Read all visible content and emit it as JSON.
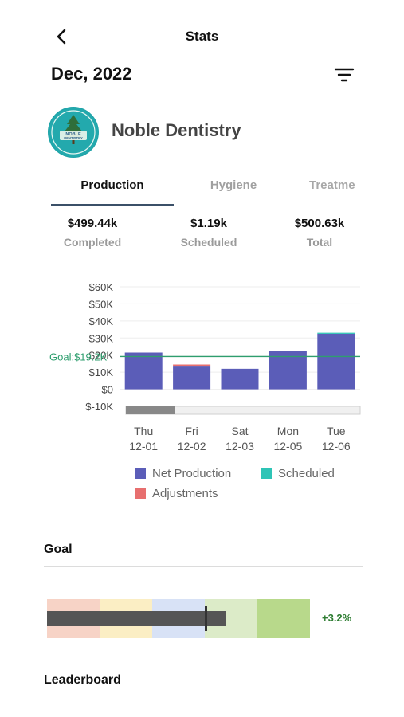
{
  "header": {
    "title": "Stats",
    "back_icon": "chevron-left-icon",
    "filter_icon": "filter-lines-icon"
  },
  "period": "Dec, 2022",
  "practice": {
    "name": "Noble Dentistry",
    "logo_text_1": "NOBLE",
    "logo_text_2": "DENTISTRY"
  },
  "tabs": [
    {
      "label": "Production",
      "active": true
    },
    {
      "label": "Hygiene",
      "active": false
    },
    {
      "label": "Treatme",
      "active": false
    }
  ],
  "stats": [
    {
      "value": "$499.44k",
      "label": "Completed"
    },
    {
      "value": "$1.19k",
      "label": "Scheduled"
    },
    {
      "value": "$500.63k",
      "label": "Total"
    }
  ],
  "chart_data": {
    "type": "bar",
    "stacked": true,
    "categories": [
      "Thu 12-01",
      "Fri 12-02",
      "Sat 12-03",
      "Mon 12-05",
      "Tue 12-06"
    ],
    "tick_days": [
      "Thu",
      "Fri",
      "Sat",
      "Mon",
      "Tue"
    ],
    "tick_dates": [
      "12-01",
      "12-02",
      "12-03",
      "12-05",
      "12-06"
    ],
    "y_ticks": [
      "$60K",
      "$50K",
      "$40K",
      "$30K",
      "$20K",
      "$10K",
      "$0",
      "$-10K"
    ],
    "ylim": [
      -10000,
      60000
    ],
    "goal": {
      "label": "Goal:$19.2K",
      "value": 19200,
      "color": "#2e9e6e"
    },
    "series": [
      {
        "name": "Net Production",
        "color": "#5b5db8",
        "values": [
          21500,
          13300,
          12000,
          22500,
          32500
        ]
      },
      {
        "name": "Scheduled",
        "color": "#2ec4b6",
        "values": [
          0,
          0,
          0,
          0,
          600
        ]
      },
      {
        "name": "Adjustments",
        "color": "#e76f6f",
        "values": [
          0,
          1200,
          0,
          0,
          0
        ]
      }
    ],
    "grid": true,
    "legend_position": "bottom"
  },
  "goal_section": {
    "title": "Goal",
    "percent": "+3.2%",
    "progress_fraction": 0.68,
    "marker_fraction": 0.6,
    "band_colors": [
      "#f7d3c6",
      "#fbeec4",
      "#d8e2f6",
      "#dcebc8",
      "#b8d98b"
    ]
  },
  "leaderboard": {
    "title": "Leaderboard"
  }
}
